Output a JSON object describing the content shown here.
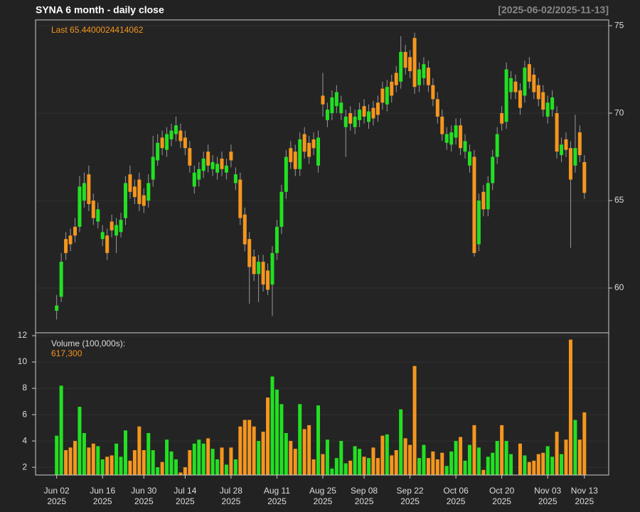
{
  "chart_data": {
    "type": "candlestick",
    "title": "SYNA  6 month - daily close",
    "date_range": "[2025-06-02/2025-11-13]",
    "last_label": "Last 65.4400024414062",
    "volume_title": "Volume (100,000s):",
    "volume_last_label": "617,300",
    "up_color": "#22e022",
    "down_color": "#f5961e",
    "grid": true,
    "ylim": [
      57.44,
      75.33
    ],
    "yticks": [
      60,
      65,
      70,
      75
    ],
    "volume_ylim": [
      1.41,
      12.22
    ],
    "volume_yticks": [
      2,
      4,
      6,
      8,
      10,
      12
    ],
    "xlim": [
      -4.6,
      120.3
    ],
    "xticks": [
      {
        "value": 0,
        "label": "Jun 02",
        "year": "2025"
      },
      {
        "value": 10,
        "label": "Jun 16",
        "year": "2025"
      },
      {
        "value": 19,
        "label": "Jun 30",
        "year": "2025"
      },
      {
        "value": 28,
        "label": "Jul 14",
        "year": "2025"
      },
      {
        "value": 38,
        "label": "Jul 28",
        "year": "2025"
      },
      {
        "value": 48,
        "label": "Aug 11",
        "year": "2025"
      },
      {
        "value": 58,
        "label": "Aug 25",
        "year": "2025"
      },
      {
        "value": 67,
        "label": "Sep 08",
        "year": "2025"
      },
      {
        "value": 77,
        "label": "Sep 22",
        "year": "2025"
      },
      {
        "value": 87,
        "label": "Oct 06",
        "year": "2025"
      },
      {
        "value": 97,
        "label": "Oct 20",
        "year": "2025"
      },
      {
        "value": 107,
        "label": "Nov 03",
        "year": "2025"
      },
      {
        "value": 115,
        "label": "Nov 13",
        "year": "2025"
      }
    ],
    "open": [
      58.7,
      59.5,
      62.8,
      63.0,
      63.5,
      63.5,
      65.0,
      66.5,
      65.0,
      63.8,
      62.8,
      63.0,
      63.8,
      63.0,
      63.2,
      64.0,
      66.5,
      65.8,
      66.2,
      65.3,
      65.0,
      66.2,
      67.3,
      68.6,
      67.9,
      68.5,
      68.8,
      69.0,
      68.6,
      68.0,
      65.8,
      66.2,
      66.7,
      67.8,
      66.8,
      66.6,
      67.4,
      66.6,
      67.8,
      66.0,
      66.2,
      64.2,
      62.8,
      61.8,
      60.8,
      61.5,
      61.0,
      60.2,
      62.0,
      63.5,
      65.5,
      68.0,
      67.8,
      66.8,
      68.8,
      68.3,
      68.5,
      67.0,
      71.0,
      69.6,
      70.0,
      70.4,
      70.0,
      69.2,
      70.0,
      69.2,
      69.6,
      70.4,
      69.5,
      70.3,
      70.6,
      71.4,
      70.5,
      71.8,
      72.3,
      71.8,
      73.5,
      73.2,
      74.3,
      71.6,
      72.0,
      72.6,
      71.6,
      70.8,
      69.8,
      68.3,
      68.2,
      68.6,
      69.3,
      67.8,
      67.0,
      67.5,
      62.5,
      65.5,
      64.5,
      66.0,
      67.5,
      70.0,
      69.5,
      71.2,
      71.8,
      71.3,
      71.0,
      72.8,
      72.2,
      71.6,
      71.2,
      69.8,
      70.2,
      70.0,
      67.6,
      68.5,
      68.0,
      67.0,
      68.9,
      67.2
    ],
    "high": [
      59.6,
      62.0,
      63.2,
      63.4,
      64.0,
      66.4,
      66.6,
      67.0,
      65.4,
      64.9,
      63.6,
      63.4,
      64.2,
      64.0,
      64.3,
      66.4,
      67.0,
      66.2,
      66.6,
      65.7,
      66.5,
      68.7,
      68.8,
      69.0,
      69.2,
      69.4,
      69.8,
      69.4,
      69.0,
      68.4,
      67.0,
      67.2,
      67.8,
      68.2,
      67.6,
      67.5,
      67.8,
      67.4,
      68.2,
      66.9,
      66.6,
      64.6,
      63.2,
      62.2,
      61.9,
      61.9,
      61.4,
      62.4,
      63.9,
      65.9,
      67.9,
      68.4,
      68.2,
      68.9,
      69.2,
      68.7,
      68.9,
      69.0,
      72.3,
      70.6,
      71.3,
      71.6,
      71.0,
      70.2,
      70.4,
      70.2,
      70.6,
      70.8,
      70.5,
      70.7,
      71.0,
      71.8,
      71.9,
      72.2,
      72.7,
      74.4,
      73.9,
      73.6,
      74.6,
      72.9,
      73.2,
      73.0,
      72.0,
      71.2,
      70.2,
      69.2,
      69.3,
      69.7,
      69.7,
      68.8,
      68.2,
      67.9,
      65.4,
      65.9,
      66.4,
      67.9,
      69.2,
      70.4,
      72.9,
      72.4,
      72.2,
      71.7,
      73.0,
      73.2,
      72.6,
      72.0,
      71.6,
      71.0,
      71.3,
      70.4,
      68.6,
      68.9,
      68.4,
      69.9,
      69.3,
      67.6
    ],
    "low": [
      58.2,
      59.2,
      61.6,
      62.1,
      62.6,
      63.2,
      64.6,
      64.4,
      63.6,
      63.4,
      62.4,
      61.6,
      62.9,
      62.0,
      62.9,
      63.6,
      65.1,
      64.8,
      64.4,
      64.3,
      64.6,
      65.8,
      67.0,
      67.6,
      67.5,
      68.1,
      68.4,
      68.0,
      67.6,
      66.6,
      65.4,
      65.8,
      66.3,
      66.6,
      66.4,
      66.2,
      66.4,
      66.2,
      66.9,
      65.6,
      63.6,
      62.1,
      59.1,
      60.4,
      59.2,
      59.8,
      59.6,
      58.4,
      61.6,
      63.1,
      65.1,
      66.8,
      66.4,
      66.4,
      67.4,
      67.1,
      67.6,
      66.6,
      69.8,
      69.2,
      69.6,
      70.0,
      69.6,
      67.5,
      69.0,
      68.8,
      69.2,
      69.4,
      69.1,
      69.3,
      69.5,
      70.2,
      70.1,
      70.6,
      71.2,
      71.4,
      72.2,
      72.0,
      71.1,
      71.2,
      71.6,
      71.2,
      70.4,
      69.4,
      68.4,
      67.9,
      67.8,
      68.2,
      67.6,
      67.4,
      66.6,
      61.8,
      62.1,
      64.1,
      64.1,
      65.6,
      67.1,
      69.0,
      69.1,
      70.8,
      70.8,
      69.9,
      70.6,
      71.4,
      70.8,
      70.4,
      69.8,
      69.4,
      69.8,
      67.4,
      67.2,
      67.5,
      62.3,
      66.6,
      67.2,
      65.1
    ],
    "close": [
      59.0,
      61.5,
      62.0,
      62.5,
      63.0,
      65.8,
      66.0,
      64.8,
      64.0,
      64.5,
      63.2,
      62.0,
      63.3,
      63.6,
      63.9,
      66.0,
      65.5,
      65.2,
      64.8,
      64.7,
      66.0,
      67.5,
      68.3,
      68.0,
      68.8,
      69.0,
      69.3,
      68.4,
      68.0,
      67.0,
      66.6,
      66.8,
      67.4,
      67.0,
      67.2,
      67.1,
      66.8,
      67.0,
      67.3,
      66.5,
      64.0,
      62.5,
      61.2,
      60.8,
      61.5,
      60.2,
      59.9,
      62.0,
      63.5,
      65.5,
      67.5,
      67.2,
      66.8,
      68.5,
      67.8,
      67.5,
      68.0,
      68.6,
      70.5,
      70.2,
      70.9,
      71.2,
      70.6,
      69.8,
      69.4,
      69.8,
      70.2,
      69.8,
      70.1,
      69.7,
      69.9,
      70.6,
      71.5,
      71.0,
      71.6,
      73.5,
      72.6,
      72.4,
      71.5,
      72.5,
      72.8,
      71.6,
      70.8,
      69.8,
      68.8,
      68.8,
      68.9,
      69.3,
      68.0,
      68.4,
      67.8,
      62.0,
      65.0,
      64.5,
      66.0,
      67.5,
      68.8,
      69.4,
      72.5,
      72.0,
      71.2,
      70.3,
      72.6,
      71.8,
      71.2,
      70.8,
      70.2,
      70.6,
      70.9,
      67.8,
      68.2,
      67.9,
      66.2,
      68.0,
      67.6,
      65.4400024414062
    ],
    "volume": [
      4.4,
      8.2,
      3.3,
      3.5,
      4.0,
      6.6,
      4.6,
      3.5,
      3.8,
      3.6,
      2.6,
      2.8,
      2.9,
      3.8,
      2.8,
      4.8,
      2.5,
      3.3,
      5.1,
      3.3,
      4.6,
      3.3,
      2.0,
      2.4,
      4.1,
      3.2,
      2.6,
      1.6,
      2.0,
      3.3,
      3.8,
      4.1,
      3.8,
      4.2,
      3.4,
      2.6,
      3.5,
      2.2,
      3.5,
      2.6,
      5.1,
      5.6,
      5.6,
      5.1,
      4.0,
      4.7,
      7.3,
      8.9,
      7.9,
      6.8,
      4.6,
      4.0,
      3.4,
      6.8,
      4.9,
      5.2,
      2.6,
      6.7,
      3.0,
      4.1,
      1.9,
      2.7,
      4.0,
      2.3,
      2.5,
      3.6,
      3.4,
      2.8,
      2.7,
      3.5,
      2.7,
      4.4,
      4.5,
      2.9,
      3.3,
      6.4,
      4.2,
      3.7,
      9.7,
      2.7,
      3.7,
      2.7,
      3.2,
      2.6,
      3.1,
      2.1,
      3.2,
      4.0,
      4.3,
      2.5,
      3.7,
      5.2,
      3.5,
      1.8,
      2.8,
      3.1,
      4.0,
      5.2,
      4.0,
      3.0,
      1.4,
      3.8,
      2.9,
      2.4,
      2.5,
      3.0,
      3.1,
      3.6,
      2.8,
      4.7,
      3.0,
      4.1,
      11.7,
      5.6,
      4.1,
      6.173
    ]
  }
}
